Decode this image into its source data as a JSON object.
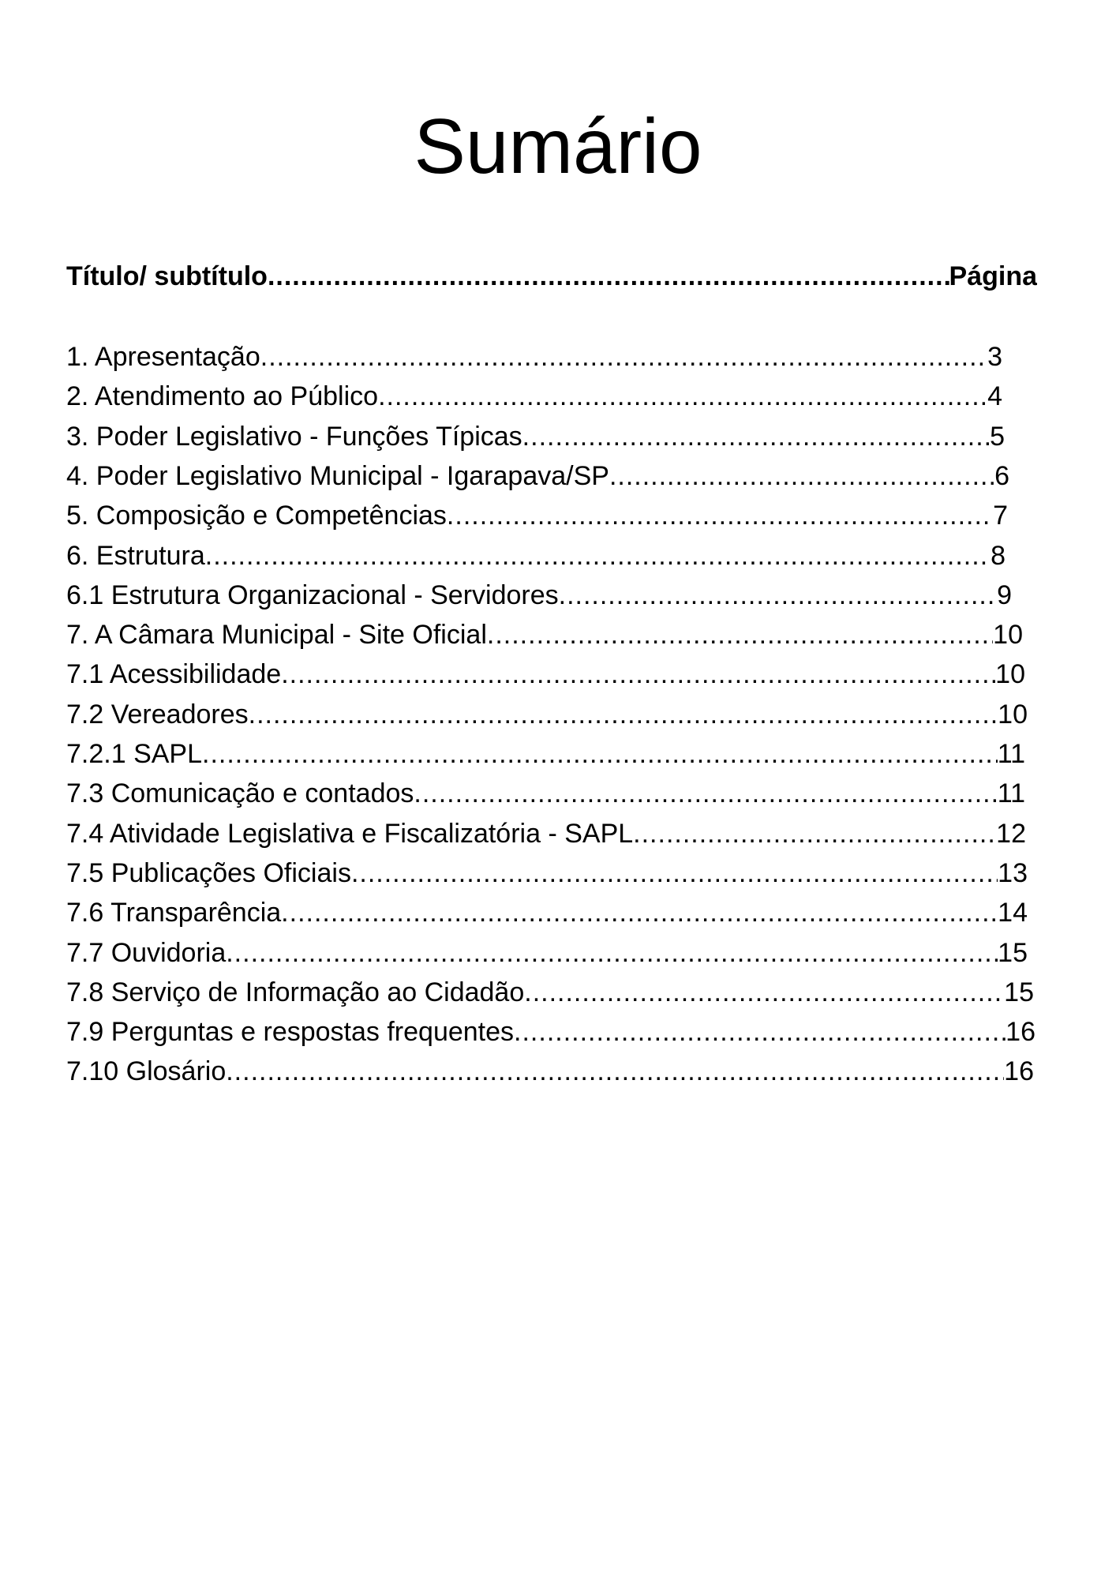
{
  "title": "Sumário",
  "header": {
    "left": "Título/ subtítulo",
    "right": "Página"
  },
  "entries": [
    {
      "label": "1. Apresentação",
      "page": "3"
    },
    {
      "label": "2. Atendimento ao Público",
      "page": "4"
    },
    {
      "label": "3. Poder Legislativo - Funções Típicas",
      "page": "5"
    },
    {
      "label": "4. Poder Legislativo Municipal - Igarapava/SP",
      "page": "6"
    },
    {
      "label": "5. Composição e Competências",
      "page": "7"
    },
    {
      "label": "6. Estrutura",
      "page": "8"
    },
    {
      "label": "6.1 Estrutura Organizacional - Servidores",
      "page": "9"
    },
    {
      "label": "7. A Câmara Municipal - Site Oficial",
      "page": "10"
    },
    {
      "label": "7.1 Acessibilidade",
      "page": "10"
    },
    {
      "label": "7.2 Vereadores",
      "page": "10"
    },
    {
      "label": "7.2.1 SAPL",
      "page": "11"
    },
    {
      "label": "7.3 Comunicação e contados",
      "page": "11"
    },
    {
      "label": "7.4 Atividade Legislativa e Fiscalizatória - SAPL",
      "page": "12"
    },
    {
      "label": "7.5 Publicações Oficiais",
      "page": "13"
    },
    {
      "label": "7.6 Transparência",
      "page": "14"
    },
    {
      "label": "7.7 Ouvidoria",
      "page": "15"
    },
    {
      "label": "7.8 Serviço de Informação ao Cidadão",
      "page": "15"
    },
    {
      "label": "7.9 Perguntas e respostas frequentes",
      "page": "16"
    },
    {
      "label": "7.10 Glosário",
      "page": "16"
    }
  ]
}
